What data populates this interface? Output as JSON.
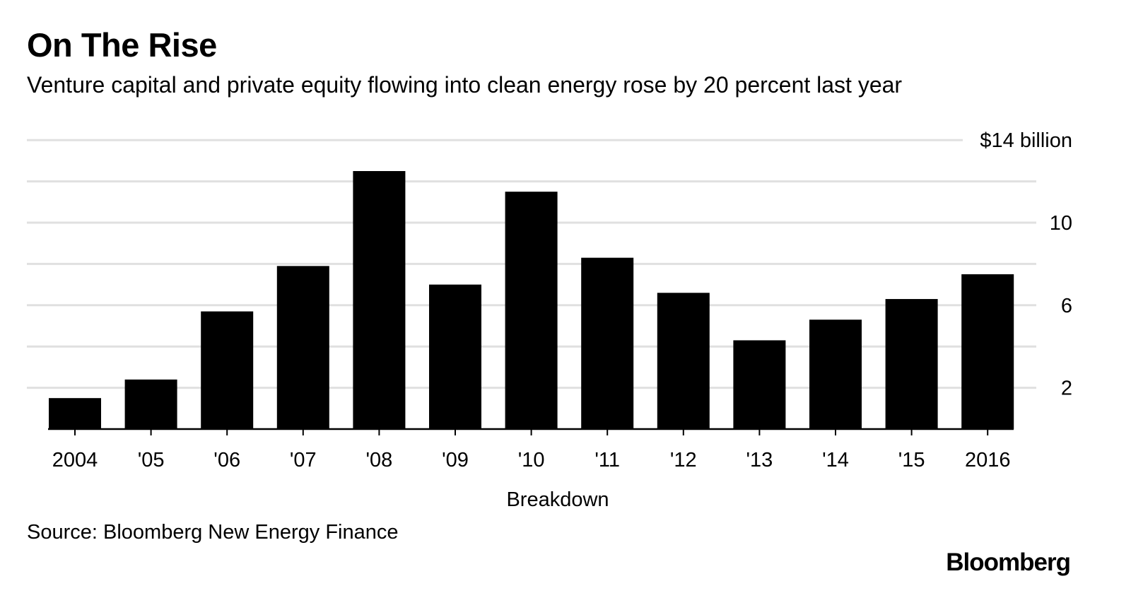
{
  "header": {
    "title": "On The Rise",
    "subtitle": "Venture capital and private equity flowing into clean energy rose by 20 percent last year"
  },
  "footer": {
    "source": "Source: Bloomberg New Energy Finance",
    "brand": "Bloomberg"
  },
  "chart_data": {
    "type": "bar",
    "title": "On The Rise",
    "subtitle": "Venture capital and private equity flowing into clean energy rose by 20 percent last year",
    "xlabel": "Breakdown",
    "ylabel": "",
    "categories": [
      "2004",
      "'05",
      "'06",
      "'07",
      "'08",
      "'09",
      "'10",
      "'11",
      "'12",
      "'13",
      "'14",
      "'15",
      "2016"
    ],
    "values": [
      1.5,
      2.4,
      5.7,
      7.9,
      12.5,
      7.0,
      11.5,
      8.3,
      6.6,
      4.3,
      5.3,
      6.3,
      7.5
    ],
    "ylim": [
      0,
      14
    ],
    "yticks": [
      2,
      6,
      10,
      14
    ],
    "ytick_labels": [
      "2",
      "6",
      "10",
      "$14 billion"
    ],
    "gridlines": [
      2,
      4,
      6,
      8,
      10,
      12,
      14
    ],
    "grid": true,
    "y_axis_side": "right",
    "bar_color": "#000000",
    "grid_color": "#e0e0e0"
  }
}
